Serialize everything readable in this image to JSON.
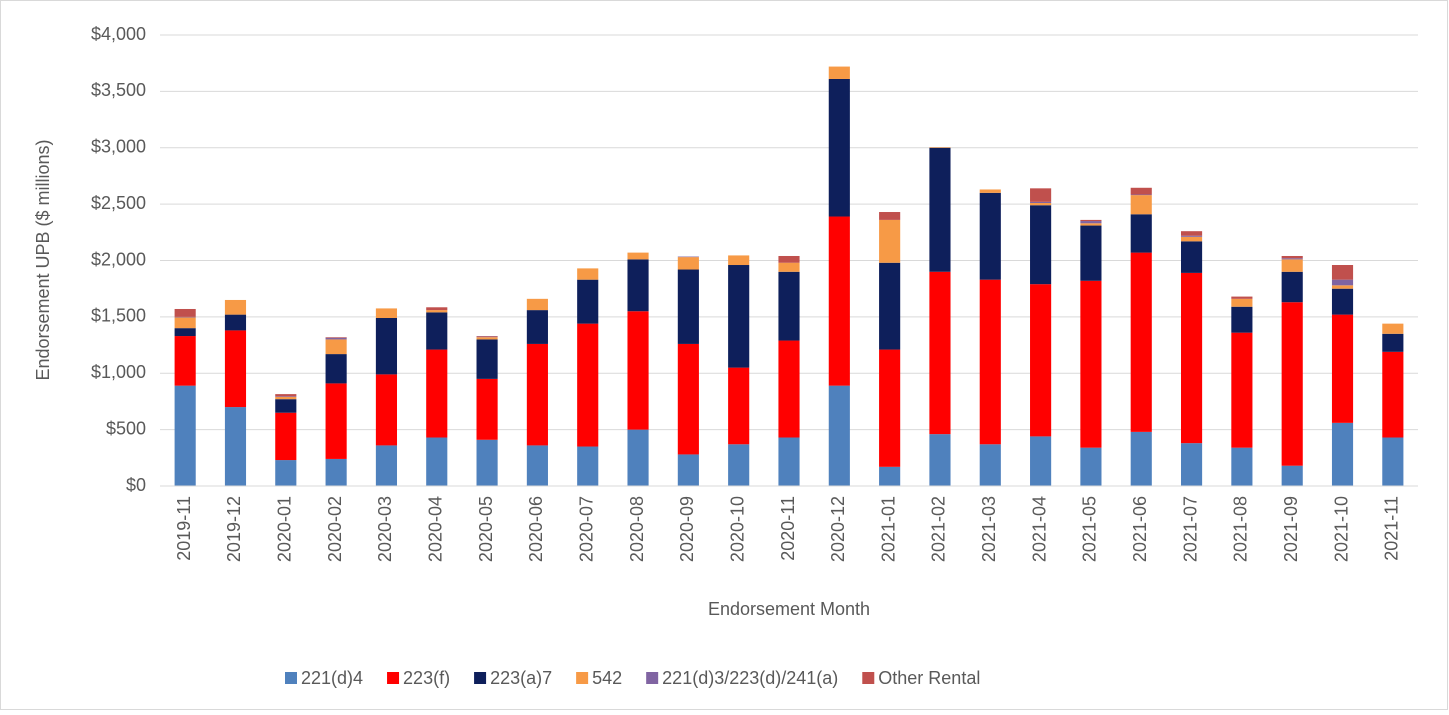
{
  "chart_data": {
    "type": "stacked-bar",
    "y_label": "Endorsement UPB ($ millions)",
    "x_label": "Endorsement Month",
    "categories": [
      "2019-11",
      "2019-12",
      "2020-01",
      "2020-02",
      "2020-03",
      "2020-04",
      "2020-05",
      "2020-06",
      "2020-07",
      "2020-08",
      "2020-09",
      "2020-10",
      "2020-11",
      "2020-12",
      "2021-01",
      "2021-02",
      "2021-03",
      "2021-04",
      "2021-05",
      "2021-06",
      "2021-07",
      "2021-08",
      "2021-09",
      "2021-10",
      "2021-11"
    ],
    "series": [
      {
        "name": "221(d)4",
        "color": "#4f81bd",
        "values": [
          890,
          700,
          230,
          240,
          360,
          430,
          410,
          360,
          350,
          500,
          280,
          370,
          430,
          890,
          170,
          460,
          370,
          440,
          340,
          480,
          380,
          340,
          180,
          560,
          430
        ]
      },
      {
        "name": "223(f)",
        "color": "#ff0000",
        "values": [
          440,
          680,
          420,
          670,
          630,
          780,
          540,
          900,
          1090,
          1050,
          980,
          680,
          860,
          1500,
          1040,
          1440,
          1460,
          1350,
          1480,
          1590,
          1510,
          1020,
          1450,
          960,
          760
        ]
      },
      {
        "name": "223(a)7",
        "color": "#0e1f5b",
        "values": [
          70,
          140,
          120,
          260,
          500,
          330,
          350,
          300,
          390,
          460,
          660,
          910,
          610,
          1220,
          770,
          1100,
          770,
          700,
          490,
          340,
          280,
          230,
          270,
          230,
          160
        ]
      },
      {
        "name": "542",
        "color": "#f79a46",
        "values": [
          95,
          130,
          20,
          130,
          85,
          20,
          20,
          100,
          100,
          60,
          110,
          85,
          80,
          110,
          380,
          5,
          30,
          20,
          20,
          170,
          40,
          70,
          110,
          30,
          90
        ]
      },
      {
        "name": "221(d)3/223(d)/241(a)",
        "color": "#8064a2",
        "values": [
          5,
          0,
          5,
          15,
          0,
          0,
          5,
          0,
          0,
          0,
          5,
          0,
          0,
          0,
          0,
          0,
          0,
          10,
          20,
          5,
          10,
          0,
          10,
          50,
          0
        ]
      },
      {
        "name": "Other Rental",
        "color": "#c0504d",
        "values": [
          70,
          0,
          20,
          5,
          0,
          25,
          5,
          0,
          0,
          0,
          0,
          0,
          60,
          0,
          70,
          0,
          0,
          120,
          10,
          60,
          40,
          20,
          20,
          130,
          0
        ]
      }
    ],
    "ylim": [
      0,
      4000
    ],
    "yticks": [
      {
        "value": 0,
        "label": "$0"
      },
      {
        "value": 500,
        "label": "$500"
      },
      {
        "value": 1000,
        "label": "$1,000"
      },
      {
        "value": 1500,
        "label": "$1,500"
      },
      {
        "value": 2000,
        "label": "$2,000"
      },
      {
        "value": 2500,
        "label": "$2,500"
      },
      {
        "value": 3000,
        "label": "$3,000"
      },
      {
        "value": 3500,
        "label": "$3,500"
      },
      {
        "value": 4000,
        "label": "$4,000"
      }
    ],
    "grid": true
  }
}
